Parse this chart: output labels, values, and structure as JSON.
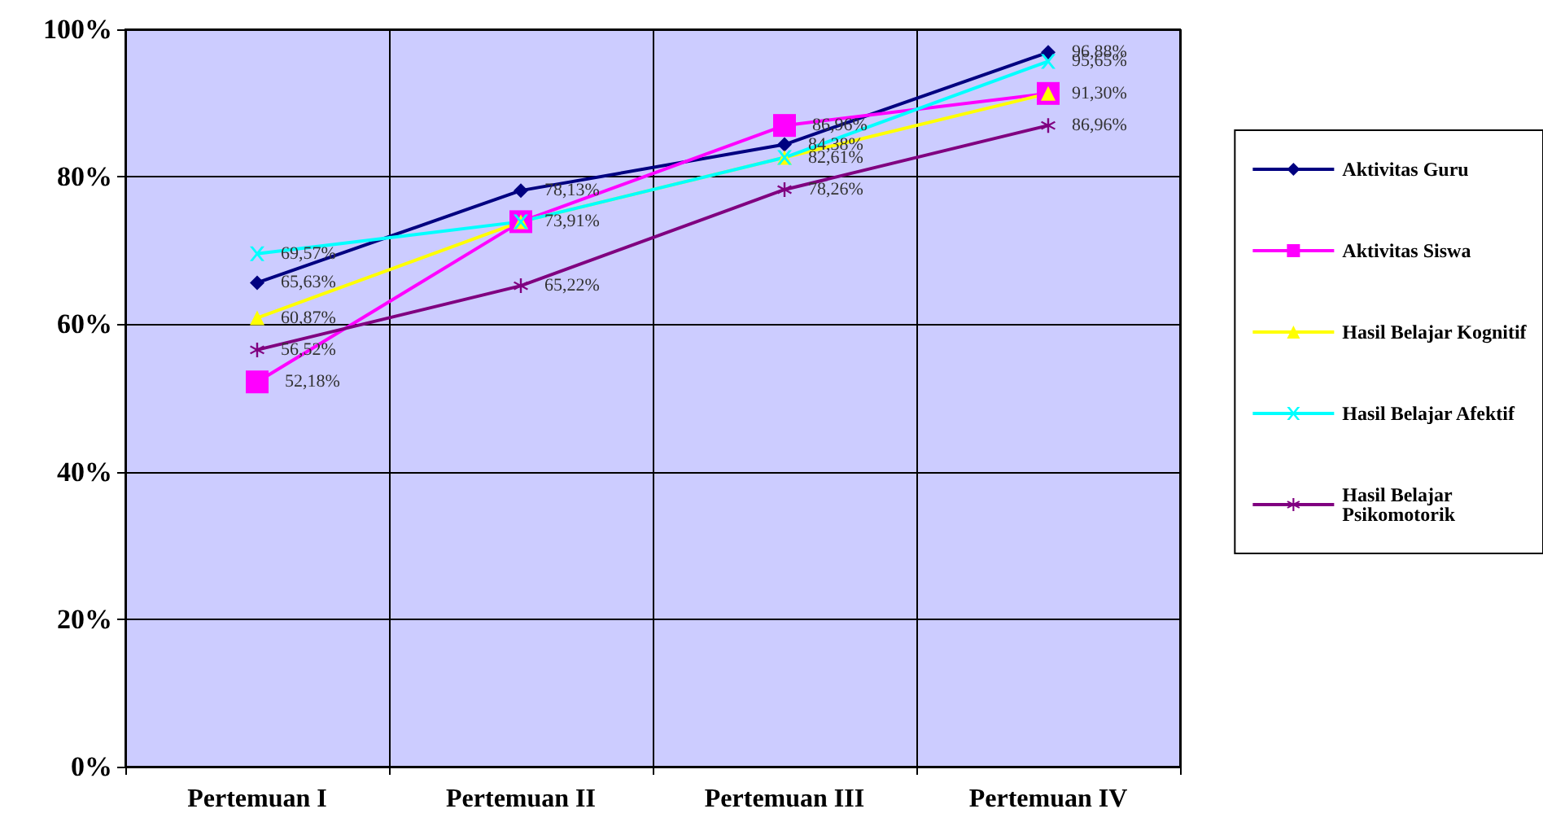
{
  "chart_data": {
    "type": "line",
    "categories": [
      "Pertemuan I",
      "Pertemuan II",
      "Pertemuan III",
      "Pertemuan IV"
    ],
    "series": [
      {
        "name": "Aktivitas Guru",
        "color": "#000080",
        "marker": "diamond",
        "values": [
          65.63,
          78.13,
          84.38,
          96.88
        ],
        "value_labels": [
          "65,63%",
          "78,13%",
          "84,38%",
          "96,88%"
        ]
      },
      {
        "name": "Aktivitas Siswa",
        "color": "#ff00ff",
        "marker": "square",
        "values": [
          52.18,
          73.91,
          86.96,
          91.3
        ],
        "value_labels": [
          "52,18%",
          null,
          "86,96%",
          null
        ]
      },
      {
        "name": "Hasil Belajar Kognitif",
        "color": "#ffff00",
        "marker": "triangle",
        "values": [
          60.87,
          73.91,
          82.61,
          91.3
        ],
        "value_labels": [
          "60,87%",
          "73,91%",
          "82,61%",
          "91,30%"
        ]
      },
      {
        "name": "Hasil Belajar Afektif",
        "color": "#00ffff",
        "marker": "cross",
        "values": [
          69.57,
          73.91,
          82.61,
          95.65
        ],
        "value_labels": [
          "69,57%",
          null,
          null,
          "95,65%"
        ]
      },
      {
        "name": "Hasil Belajar Psikomotorik",
        "color": "#800080",
        "marker": "star",
        "values": [
          56.52,
          65.22,
          78.26,
          86.96
        ],
        "value_labels": [
          "56,52%",
          "65,22%",
          "78,26%",
          "86,96%"
        ]
      }
    ],
    "ylim": [
      0,
      100
    ],
    "yticks": [
      {
        "value": 0,
        "label": "0%"
      },
      {
        "value": 20,
        "label": "20%"
      },
      {
        "value": 40,
        "label": "40%"
      },
      {
        "value": 60,
        "label": "60%"
      },
      {
        "value": 80,
        "label": "80%"
      },
      {
        "value": 100,
        "label": "100%"
      }
    ],
    "grid": true,
    "legend": "right"
  }
}
